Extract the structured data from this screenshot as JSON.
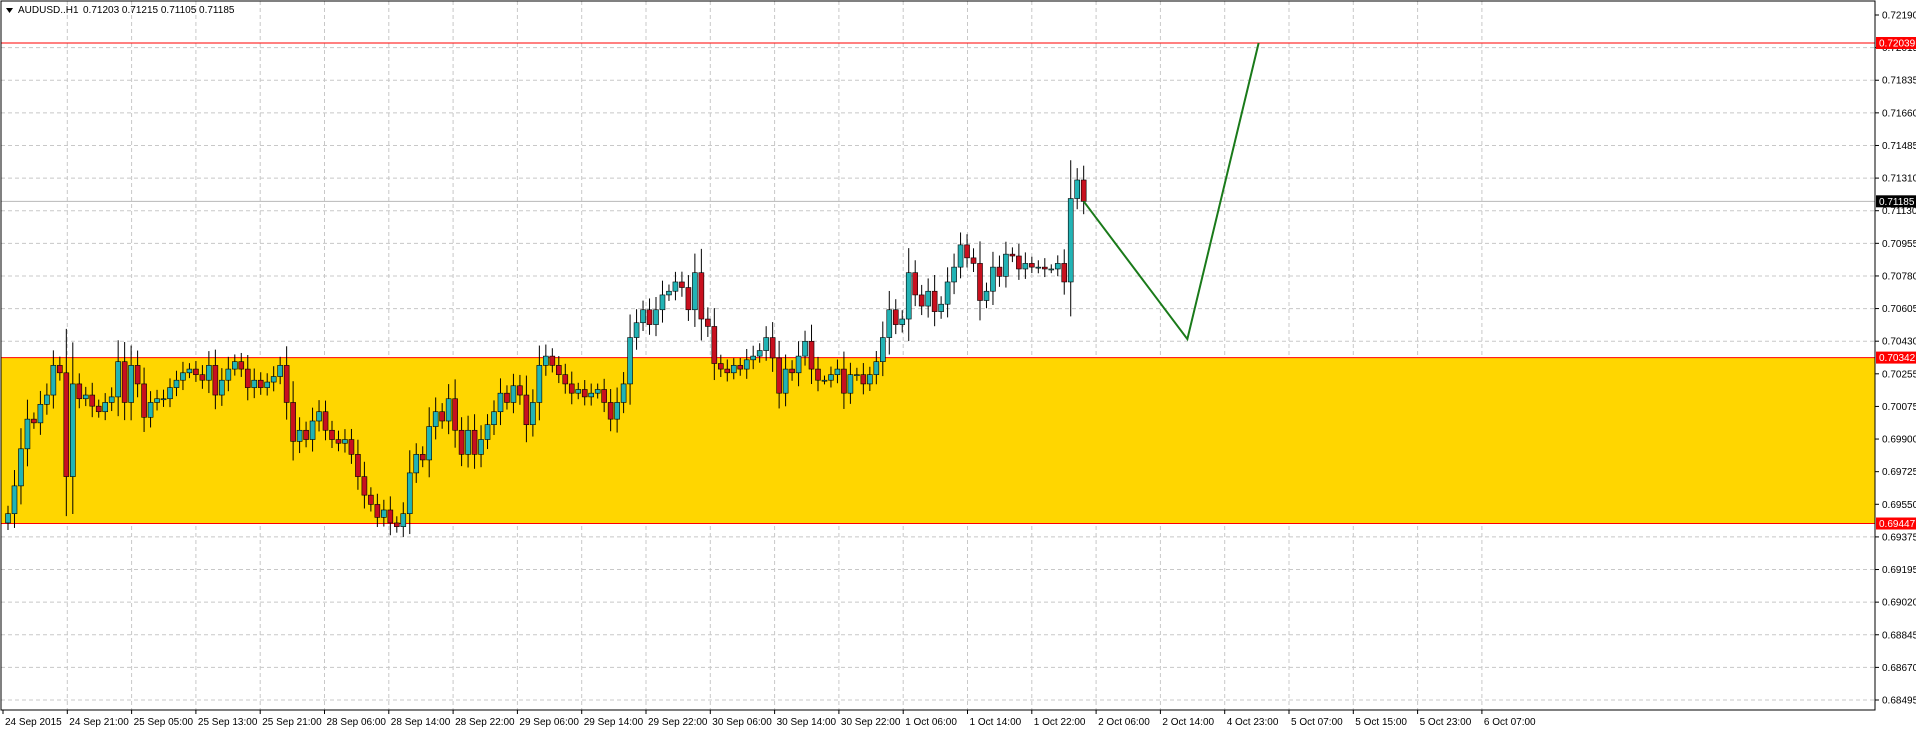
{
  "header": {
    "symbol": "AUDUSD..H1",
    "ohlc": "0.71203 0.71215 0.71105 0.71185"
  },
  "colors": {
    "background": "#ffffff",
    "grid": "#c8c8c8",
    "bull": "#22b3b5",
    "bear": "#c8101e",
    "zone": "#ffd600",
    "resistance": "#ff0000",
    "projection": "#1a7a1a",
    "current_price_badge": "#000000",
    "level_badge": "#ff0000"
  },
  "chart_data": {
    "type": "candlestick",
    "title": "AUDUSD..H1",
    "y_axis": {
      "range": [
        0.68495,
        0.7219
      ],
      "ticks": [
        "0.72190",
        "0.72015",
        "0.71835",
        "0.71660",
        "0.71485",
        "0.71310",
        "0.71130",
        "0.70955",
        "0.70780",
        "0.70605",
        "0.70430",
        "0.70255",
        "0.70075",
        "0.69900",
        "0.69725",
        "0.69550",
        "0.69375",
        "0.69195",
        "0.69020",
        "0.68845",
        "0.68670",
        "0.68495"
      ]
    },
    "x_axis": {
      "labels": [
        "24 Sep 2015",
        "24 Sep 21:00",
        "25 Sep 05:00",
        "25 Sep 13:00",
        "25 Sep 21:00",
        "28 Sep 06:00",
        "28 Sep 14:00",
        "28 Sep 22:00",
        "29 Sep 06:00",
        "29 Sep 14:00",
        "29 Sep 22:00",
        "30 Sep 06:00",
        "30 Sep 14:00",
        "30 Sep 22:00",
        "1 Oct 06:00",
        "1 Oct 14:00",
        "1 Oct 22:00",
        "2 Oct 06:00",
        "2 Oct 14:00",
        "4 Oct 23:00",
        "5 Oct 07:00",
        "5 Oct 15:00",
        "5 Oct 23:00",
        "6 Oct 07:00"
      ]
    },
    "grid": true,
    "levels": [
      {
        "name": "resistance",
        "value": 0.72039,
        "label": "0.72039"
      },
      {
        "name": "zone-top",
        "value": 0.70342,
        "label": "0.70342"
      },
      {
        "name": "zone-bottom",
        "value": 0.69447,
        "label": "0.69447"
      }
    ],
    "current_price": {
      "value": 0.71185,
      "label": "0.71185"
    },
    "zone": {
      "top": 0.70342,
      "bottom": 0.69447
    },
    "closes": [
      0.695,
      0.6965,
      0.6985,
      0.7001,
      0.6999,
      0.7009,
      0.7014,
      0.703,
      0.7026,
      0.697,
      0.702,
      0.7012,
      0.7014,
      0.7008,
      0.7005,
      0.701,
      0.7013,
      0.7032,
      0.701,
      0.703,
      0.702,
      0.7002,
      0.701,
      0.7012,
      0.7012,
      0.7018,
      0.7022,
      0.7026,
      0.7028,
      0.7025,
      0.7022,
      0.703,
      0.7014,
      0.7022,
      0.7028,
      0.7032,
      0.7028,
      0.7018,
      0.7022,
      0.7018,
      0.7021,
      0.7024,
      0.703,
      0.701,
      0.6989,
      0.6995,
      0.699,
      0.7,
      0.7005,
      0.6995,
      0.699,
      0.6988,
      0.699,
      0.6982,
      0.697,
      0.696,
      0.6955,
      0.6948,
      0.6952,
      0.6945,
      0.6943,
      0.695,
      0.6972,
      0.6982,
      0.6979,
      0.6997,
      0.7005,
      0.7,
      0.7012,
      0.6995,
      0.6982,
      0.6995,
      0.6982,
      0.699,
      0.6998,
      0.7005,
      0.7015,
      0.701,
      0.7019,
      0.7014,
      0.6998,
      0.701,
      0.703,
      0.7035,
      0.703,
      0.7025,
      0.702,
      0.7015,
      0.7017,
      0.7013,
      0.7015,
      0.7017,
      0.701,
      0.7001,
      0.701,
      0.702,
      0.7045,
      0.7053,
      0.706,
      0.7052,
      0.706,
      0.7068,
      0.707,
      0.7075,
      0.7072,
      0.706,
      0.708,
      0.7055,
      0.7051,
      0.7031,
      0.7028,
      0.7026,
      0.703,
      0.7028,
      0.7033,
      0.7035,
      0.7038,
      0.7045,
      0.7034,
      0.7015,
      0.7028,
      0.7026,
      0.7035,
      0.7043,
      0.7028,
      0.7022,
      0.7022,
      0.7025,
      0.7028,
      0.7015,
      0.7025,
      0.7025,
      0.702,
      0.7025,
      0.7032,
      0.7045,
      0.706,
      0.7052,
      0.7055,
      0.708,
      0.7068,
      0.7062,
      0.707,
      0.7059,
      0.7063,
      0.7075,
      0.7083,
      0.7095,
      0.7088,
      0.7085,
      0.7065,
      0.707,
      0.7083,
      0.7078,
      0.709,
      0.7089,
      0.7082,
      0.7085,
      0.7083,
      0.7083,
      0.7082,
      0.7082,
      0.7085,
      0.7075,
      0.712,
      0.713,
      0.71185
    ],
    "projection": [
      {
        "bar": 166,
        "price": 0.71185
      },
      {
        "bar": 182,
        "price": 0.70442
      },
      {
        "bar": 193,
        "price": 0.72039
      }
    ]
  }
}
